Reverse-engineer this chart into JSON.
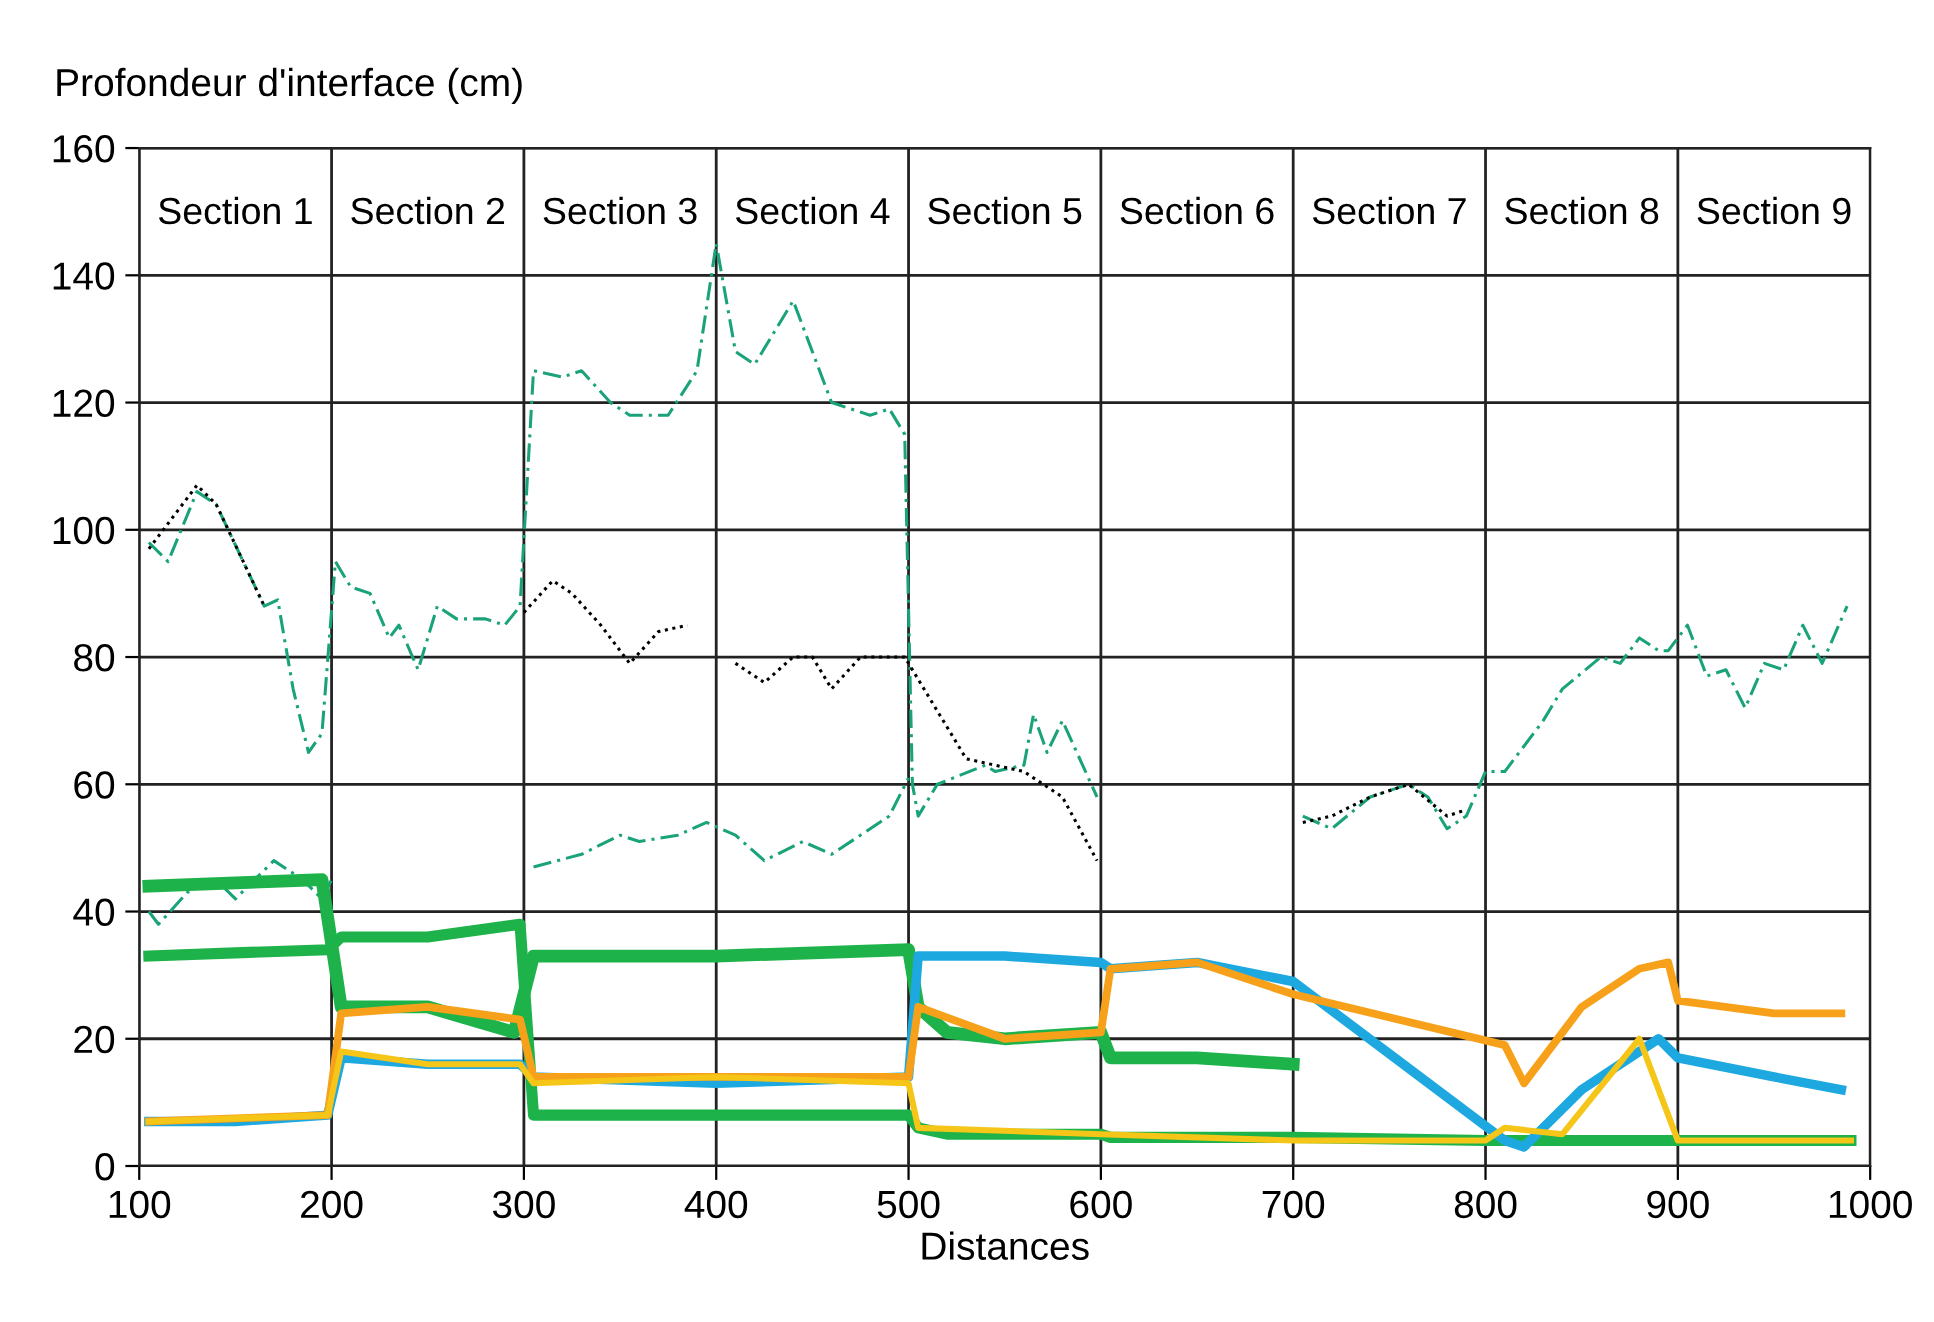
{
  "chart_data": {
    "type": "line",
    "ylabel": "Profondeur d'interface (cm)",
    "xlabel": "Distances",
    "annotations": [
      "Section 1",
      "Section 2",
      "Section 3",
      "Section 4",
      "Section 5",
      "Section 6",
      "Section 7",
      "Section 8",
      "Section 9"
    ],
    "xlim": [
      100,
      1000
    ],
    "xticks": [
      100,
      200,
      300,
      400,
      500,
      600,
      700,
      800,
      900,
      1000
    ],
    "ylim": [
      0,
      160
    ],
    "yticks": [
      0,
      20,
      40,
      60,
      80,
      100,
      120,
      140,
      160
    ],
    "grid": true,
    "legend": false,
    "marker": "none",
    "series": [
      {
        "color": "#1aa37a",
        "line_style": "dashed",
        "x": [
          105,
          115,
          130,
          140,
          165,
          172,
          180,
          188,
          195,
          202,
          210,
          220,
          230,
          235,
          245,
          255,
          265,
          280,
          290,
          298,
          305,
          320,
          330,
          345,
          355,
          375,
          390,
          400,
          410,
          420,
          440,
          460,
          480,
          490,
          498,
          502,
          505,
          515,
          540,
          545,
          560,
          565,
          572,
          580,
          598,
          650,
          705,
          720,
          740,
          760,
          770,
          780,
          790,
          800,
          810,
          830,
          840,
          860,
          870,
          880,
          890,
          895,
          905,
          915,
          925,
          935,
          945,
          955,
          965,
          975,
          988
        ],
        "values": [
          98,
          95,
          106,
          104,
          88,
          89,
          75,
          65,
          68,
          95,
          91,
          90,
          83,
          85,
          78,
          88,
          86,
          86,
          85,
          88,
          125,
          124,
          125,
          120,
          118,
          118,
          125,
          145,
          128,
          126,
          136,
          120,
          118,
          119,
          115,
          60,
          55,
          60,
          63,
          62,
          63,
          71,
          65,
          70,
          58,
          null,
          55,
          53,
          58,
          60,
          58,
          53,
          55,
          62,
          62,
          70,
          75,
          80,
          79,
          83,
          81,
          81,
          85,
          77,
          78,
          72,
          79,
          78,
          85,
          79,
          88
        ]
      },
      {
        "color": "#1aa37a",
        "line_style": "dashed",
        "x": [
          105,
          110,
          125,
          140,
          150,
          170,
          185,
          195,
          200,
          250,
          305,
          330,
          350,
          360,
          380,
          395,
          410,
          425,
          445,
          460,
          475,
          490,
          500
        ],
        "values": [
          40,
          38,
          43,
          45,
          42,
          48,
          45,
          42,
          45,
          null,
          47,
          49,
          52,
          51,
          52,
          54,
          52,
          48,
          51,
          49,
          52,
          55,
          61
        ]
      },
      {
        "color": "#000000",
        "line_style": "dotted",
        "x": [
          105,
          130,
          140,
          165,
          200,
          300,
          315,
          325,
          340,
          355,
          370,
          385,
          395,
          410,
          425,
          440,
          450,
          460,
          475,
          490,
          498,
          530,
          560,
          580,
          598,
          650,
          705,
          720,
          740,
          760,
          780,
          790
        ],
        "values": [
          97,
          107,
          104,
          88,
          null,
          87,
          92,
          90,
          85,
          79,
          84,
          85,
          null,
          79,
          76,
          80,
          80,
          75,
          80,
          80,
          80,
          64,
          62,
          58,
          48,
          null,
          54,
          55,
          58,
          60,
          55,
          56
        ]
      },
      {
        "color": "#1db34a",
        "line_style": "solid",
        "x": [
          105,
          150,
          195,
          205,
          250,
          295,
          305,
          400,
          500,
          505,
          520,
          550,
          600,
          605,
          650,
          700
        ],
        "values": [
          44,
          44.5,
          45,
          25,
          25,
          21,
          33,
          33,
          34,
          25,
          21,
          20,
          21,
          17,
          17,
          16
        ]
      },
      {
        "color": "#1db34a",
        "line_style": "solid",
        "x": [
          105,
          150,
          198,
          205,
          250,
          298,
          305,
          400,
          500,
          505,
          520,
          600,
          605,
          700,
          800,
          900,
          990
        ],
        "values": [
          33,
          33.5,
          34,
          36,
          36,
          38,
          8,
          8,
          8,
          6,
          5,
          5,
          4.5,
          4.5,
          4,
          4,
          4
        ]
      },
      {
        "color": "#1ea8e0",
        "line_style": "solid",
        "x": [
          105,
          150,
          198,
          205,
          250,
          298,
          305,
          400,
          500,
          505,
          550,
          600,
          605,
          650,
          700,
          810,
          820,
          850,
          890,
          900,
          950,
          985
        ],
        "values": [
          7,
          7,
          8,
          17,
          16,
          16,
          14,
          13,
          14,
          33,
          33,
          32,
          31,
          32,
          29,
          4,
          3,
          12,
          20,
          17,
          14,
          12
        ]
      },
      {
        "color": "#f7a11a",
        "line_style": "solid",
        "x": [
          105,
          150,
          198,
          205,
          250,
          298,
          305,
          400,
          500,
          505,
          550,
          600,
          605,
          650,
          700,
          810,
          820,
          830,
          850,
          880,
          895,
          900,
          950,
          985
        ],
        "values": [
          7,
          7.5,
          8,
          24,
          25,
          23,
          14,
          14,
          14,
          25,
          20,
          21,
          31,
          32,
          27,
          19,
          13,
          17,
          25,
          31,
          32,
          26,
          24,
          24
        ]
      },
      {
        "color": "#f5c518",
        "line_style": "solid",
        "x": [
          105,
          198,
          205,
          250,
          298,
          305,
          400,
          500,
          505,
          600,
          700,
          800,
          810,
          840,
          880,
          900,
          990
        ],
        "values": [
          7,
          8,
          18,
          16,
          16,
          13,
          14,
          13,
          6,
          5,
          4,
          4,
          6,
          5,
          20,
          4,
          4
        ]
      }
    ]
  }
}
